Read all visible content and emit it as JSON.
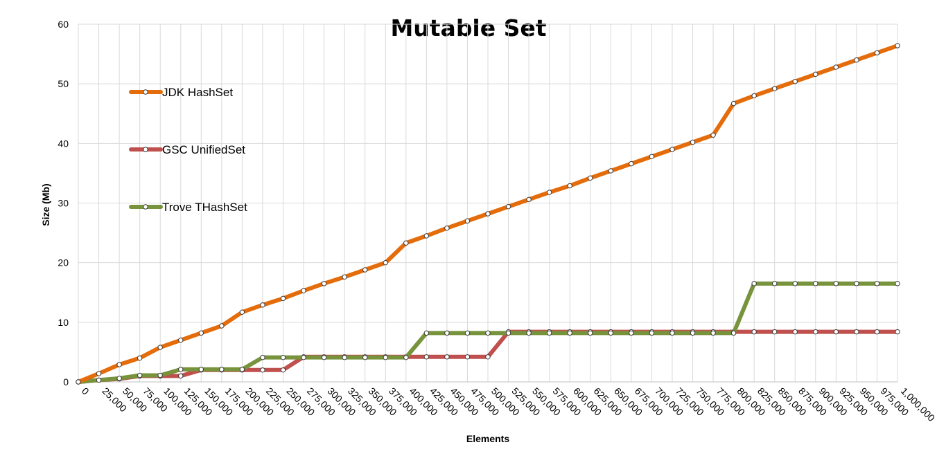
{
  "chart_data": {
    "type": "line",
    "title": "Mutable Set",
    "xlabel": "Elements",
    "ylabel": "Size (Mb)",
    "ylim": [
      0,
      60
    ],
    "yticks": [
      "0",
      "10",
      "20",
      "30",
      "40",
      "50",
      "60"
    ],
    "grid": true,
    "legend_position": "left",
    "categories": [
      "0",
      "25,000",
      "50,000",
      "75,000",
      "100,000",
      "125,000",
      "150,000",
      "175,000",
      "200,000",
      "225,000",
      "250,000",
      "275,000",
      "300,000",
      "325,000",
      "350,000",
      "375,000",
      "400,000",
      "425,000",
      "450,000",
      "475,000",
      "500,000",
      "525,000",
      "550,000",
      "575,000",
      "600,000",
      "625,000",
      "650,000",
      "675,000",
      "700,000",
      "725,000",
      "750,000",
      "775,000",
      "800,000",
      "825,000",
      "850,000",
      "875,000",
      "900,000",
      "925,000",
      "950,000",
      "975,000",
      "1,000,000"
    ],
    "series": [
      {
        "name": "JDK HashSet",
        "color": "#E46C0A",
        "values": [
          0,
          1.4,
          2.9,
          4.0,
          5.8,
          7.0,
          8.2,
          9.4,
          11.7,
          12.9,
          14.0,
          15.3,
          16.5,
          17.6,
          18.8,
          20.0,
          23.3,
          24.5,
          25.8,
          27.0,
          28.2,
          29.4,
          30.6,
          31.8,
          32.9,
          34.2,
          35.4,
          36.6,
          37.8,
          39.0,
          40.2,
          41.4,
          46.7,
          48.0,
          49.2,
          50.4,
          51.6,
          52.8,
          54.0,
          55.2,
          56.4
        ]
      },
      {
        "name": "GSC UnifiedSet",
        "color": "#C0504D",
        "values": [
          0,
          0.3,
          0.5,
          1.0,
          1.0,
          1.0,
          2.0,
          2.0,
          2.0,
          2.0,
          2.0,
          4.2,
          4.2,
          4.2,
          4.2,
          4.2,
          4.2,
          4.2,
          4.2,
          4.2,
          4.2,
          8.4,
          8.4,
          8.4,
          8.4,
          8.4,
          8.4,
          8.4,
          8.4,
          8.4,
          8.4,
          8.4,
          8.4,
          8.4,
          8.4,
          8.4,
          8.4,
          8.4,
          8.4,
          8.4,
          8.4
        ]
      },
      {
        "name": "Trove THashSet",
        "color": "#77933C",
        "values": [
          0,
          0.3,
          0.6,
          1.1,
          1.1,
          2.1,
          2.1,
          2.1,
          2.1,
          4.1,
          4.1,
          4.1,
          4.1,
          4.1,
          4.1,
          4.1,
          4.1,
          8.2,
          8.2,
          8.2,
          8.2,
          8.2,
          8.2,
          8.2,
          8.2,
          8.2,
          8.2,
          8.2,
          8.2,
          8.2,
          8.2,
          8.2,
          8.2,
          16.5,
          16.5,
          16.5,
          16.5,
          16.5,
          16.5,
          16.5,
          16.5
        ]
      }
    ]
  }
}
